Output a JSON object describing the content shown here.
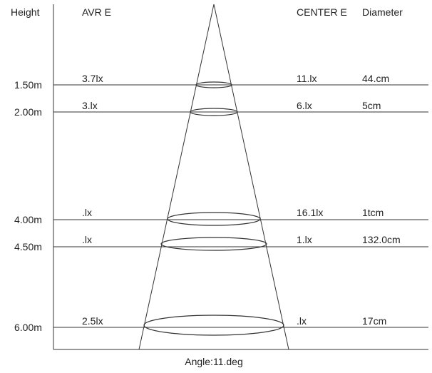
{
  "headers": {
    "height": "Height",
    "avr_e": "AVR E",
    "center_e": "CENTER E",
    "diameter": "Diameter"
  },
  "footer": {
    "angle": "Angle:11.deg"
  },
  "rows": [
    {
      "height": "1.50m",
      "avr_e": "3.7lx",
      "center_e": "11.lx",
      "diameter": "44.cm"
    },
    {
      "height": "2.00m",
      "avr_e": "3.lx",
      "center_e": "6.lx",
      "diameter": "5cm"
    },
    {
      "height": "4.00m",
      "avr_e": ".lx",
      "center_e": "16.1lx",
      "diameter": "1tcm"
    },
    {
      "height": "4.50m",
      "avr_e": ".lx",
      "center_e": "1.lx",
      "diameter": "132.0cm"
    },
    {
      "height": "6.00m",
      "avr_e": "2.5lx",
      "center_e": ".lx",
      "diameter": "17cm"
    }
  ],
  "colors": {
    "lines": "#333333",
    "text": "#222222",
    "background": "#ffffff"
  }
}
